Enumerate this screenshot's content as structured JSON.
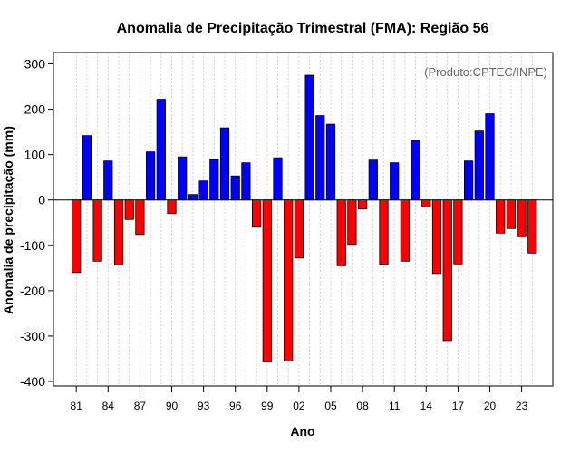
{
  "chart_data": {
    "type": "bar",
    "title": "Anomalia de Precipitação Trimestral (FMA): Região 56",
    "xlabel": "Ano",
    "ylabel": "Anomalia de precipitação (mm)",
    "credit": "(Produto:CPTEC/INPE)",
    "ylim": [
      -410,
      325
    ],
    "yticks": [
      -400,
      -300,
      -200,
      -100,
      0,
      100,
      200,
      300
    ],
    "xtick_labels": [
      "81",
      "84",
      "87",
      "90",
      "93",
      "96",
      "99",
      "02",
      "05",
      "08",
      "11",
      "14",
      "17",
      "20",
      "23"
    ],
    "xtick_every": 3,
    "grid": true,
    "positive_color": "#0000ff",
    "negative_color": "#ff0000",
    "categories": [
      "1981",
      "1982",
      "1983",
      "1984",
      "1985",
      "1986",
      "1987",
      "1988",
      "1989",
      "1990",
      "1991",
      "1992",
      "1993",
      "1994",
      "1995",
      "1996",
      "1997",
      "1998",
      "1999",
      "2000",
      "2001",
      "2002",
      "2003",
      "2004",
      "2005",
      "2006",
      "2007",
      "2008",
      "2009",
      "2010",
      "2011",
      "2012",
      "2013",
      "2014",
      "2015",
      "2016",
      "2017",
      "2018",
      "2019",
      "2020",
      "2021",
      "2022",
      "2023",
      "2024"
    ],
    "values": [
      -160,
      142,
      -135,
      86,
      -143,
      -43,
      -76,
      106,
      222,
      -30,
      95,
      12,
      42,
      89,
      159,
      53,
      82,
      -60,
      -357,
      93,
      -355,
      -128,
      275,
      186,
      167,
      -145,
      -98,
      -20,
      88,
      -142,
      82,
      -135,
      131,
      -15,
      -162,
      -310,
      -141,
      86,
      152,
      190,
      -73,
      -63,
      -81,
      -117
    ]
  }
}
